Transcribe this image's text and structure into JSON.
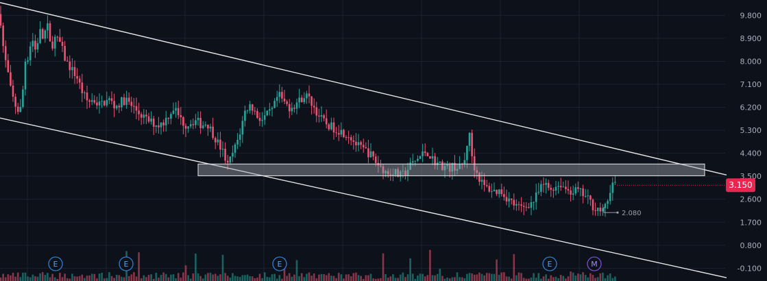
{
  "colors": {
    "background": "#0d111a",
    "grid": "#1b2130",
    "up": "#26a69a",
    "down": "#ef5373",
    "trendline": "#e6e6e6",
    "zone_fill": "#9aa0a8",
    "price_tag": "#e8264f",
    "marker_E": "#2f7fd3",
    "marker_M": "#7a4fd6"
  },
  "chart_data": {
    "type": "candlestick",
    "y_axis_position": "right",
    "ylim": [
      -0.6,
      10.4
    ],
    "y_ticks": [
      {
        "value": 9.8,
        "label": "9.800"
      },
      {
        "value": 8.9,
        "label": "8.900"
      },
      {
        "value": 8.0,
        "label": "8.000"
      },
      {
        "value": 7.1,
        "label": "7.100"
      },
      {
        "value": 6.2,
        "label": "6.200"
      },
      {
        "value": 5.3,
        "label": "5.300"
      },
      {
        "value": 4.4,
        "label": "4.400"
      },
      {
        "value": 3.5,
        "label": "3.500"
      },
      {
        "value": 2.6,
        "label": "2.600"
      },
      {
        "value": 1.7,
        "label": "1.700"
      },
      {
        "value": 0.8,
        "label": "0.800"
      },
      {
        "value": -0.1,
        "label": "-0.100"
      }
    ],
    "last_price": {
      "value": 3.15,
      "label": "3.150"
    },
    "low_annotation": {
      "value": 2.08,
      "label": "2.080"
    },
    "price_path": [
      [
        0,
        9.85
      ],
      [
        6,
        8.2
      ],
      [
        10,
        7.8
      ],
      [
        16,
        6.8
      ],
      [
        22,
        6.3
      ],
      [
        28,
        6.0
      ],
      [
        32,
        6.3
      ],
      [
        36,
        8.0
      ],
      [
        42,
        8.2
      ],
      [
        46,
        9.0
      ],
      [
        52,
        8.4
      ],
      [
        58,
        9.2
      ],
      [
        64,
        8.8
      ],
      [
        68,
        9.6
      ],
      [
        74,
        8.5
      ],
      [
        80,
        8.9
      ],
      [
        88,
        8.7
      ],
      [
        96,
        8.0
      ],
      [
        104,
        7.7
      ],
      [
        112,
        7.4
      ],
      [
        120,
        6.8
      ],
      [
        128,
        6.4
      ],
      [
        136,
        6.5
      ],
      [
        144,
        6.3
      ],
      [
        152,
        6.4
      ],
      [
        160,
        6.5
      ],
      [
        168,
        6.2
      ],
      [
        176,
        6.4
      ],
      [
        184,
        6.5
      ],
      [
        190,
        6.3
      ],
      [
        198,
        6.1
      ],
      [
        206,
        5.9
      ],
      [
        214,
        5.7
      ],
      [
        222,
        5.6
      ],
      [
        230,
        5.5
      ],
      [
        238,
        5.6
      ],
      [
        246,
        5.9
      ],
      [
        254,
        6.2
      ],
      [
        262,
        5.8
      ],
      [
        270,
        5.5
      ],
      [
        278,
        5.6
      ],
      [
        286,
        5.7
      ],
      [
        294,
        5.5
      ],
      [
        302,
        5.6
      ],
      [
        310,
        5.2
      ],
      [
        318,
        4.8
      ],
      [
        326,
        4.4
      ],
      [
        332,
        3.9
      ],
      [
        338,
        4.3
      ],
      [
        344,
        4.7
      ],
      [
        350,
        5.2
      ],
      [
        358,
        6.1
      ],
      [
        366,
        6.3
      ],
      [
        374,
        5.9
      ],
      [
        382,
        5.7
      ],
      [
        390,
        5.9
      ],
      [
        398,
        6.1
      ],
      [
        406,
        6.7
      ],
      [
        414,
        6.4
      ],
      [
        422,
        6.2
      ],
      [
        430,
        6.3
      ],
      [
        438,
        6.5
      ],
      [
        446,
        6.7
      ],
      [
        454,
        6.4
      ],
      [
        462,
        6.0
      ],
      [
        470,
        5.7
      ],
      [
        478,
        5.5
      ],
      [
        486,
        5.4
      ],
      [
        494,
        5.3
      ],
      [
        502,
        5.2
      ],
      [
        510,
        5.1
      ],
      [
        518,
        4.8
      ],
      [
        526,
        4.6
      ],
      [
        534,
        4.5
      ],
      [
        542,
        4.3
      ],
      [
        550,
        4.0
      ],
      [
        558,
        3.8
      ],
      [
        566,
        3.6
      ],
      [
        574,
        3.7
      ],
      [
        582,
        3.5
      ],
      [
        590,
        3.6
      ],
      [
        598,
        3.9
      ],
      [
        606,
        4.1
      ],
      [
        614,
        4.3
      ],
      [
        622,
        4.5
      ],
      [
        630,
        4.2
      ],
      [
        638,
        4.0
      ],
      [
        646,
        3.9
      ],
      [
        654,
        3.8
      ],
      [
        662,
        3.9
      ],
      [
        670,
        3.8
      ],
      [
        678,
        4.1
      ],
      [
        684,
        5.3
      ],
      [
        690,
        4.0
      ],
      [
        698,
        3.5
      ],
      [
        706,
        3.1
      ],
      [
        714,
        3.0
      ],
      [
        722,
        2.9
      ],
      [
        730,
        2.95
      ],
      [
        738,
        2.7
      ],
      [
        746,
        2.5
      ],
      [
        754,
        2.3
      ],
      [
        762,
        2.25
      ],
      [
        770,
        2.4
      ],
      [
        778,
        2.5
      ],
      [
        786,
        2.9
      ],
      [
        794,
        3.2
      ],
      [
        802,
        3.0
      ],
      [
        810,
        3.1
      ],
      [
        818,
        3.2
      ],
      [
        826,
        3.0
      ],
      [
        834,
        2.9
      ],
      [
        842,
        2.95
      ],
      [
        850,
        2.8
      ],
      [
        858,
        2.6
      ],
      [
        866,
        2.3
      ],
      [
        874,
        2.2
      ],
      [
        880,
        2.1
      ],
      [
        886,
        2.5
      ],
      [
        892,
        3.2
      ],
      [
        898,
        3.15
      ]
    ],
    "trendlines": [
      {
        "name": "upper",
        "p1": {
          "x": 0,
          "y": 10.3
        },
        "p2": {
          "x": 1060,
          "y": 3.55
        }
      },
      {
        "name": "lower",
        "p1": {
          "x": 0,
          "y": 5.78
        },
        "p2": {
          "x": 1060,
          "y": -0.47
        }
      }
    ],
    "zone": {
      "x_start": 289,
      "x_end": 1028,
      "y_top": 3.98,
      "y_bottom": 3.52
    },
    "events": [
      {
        "x": 81,
        "label": "E"
      },
      {
        "x": 184,
        "label": "E"
      },
      {
        "x": 408,
        "label": "E"
      },
      {
        "x": 802,
        "label": "E"
      },
      {
        "x": 867,
        "label": "M"
      }
    ]
  }
}
